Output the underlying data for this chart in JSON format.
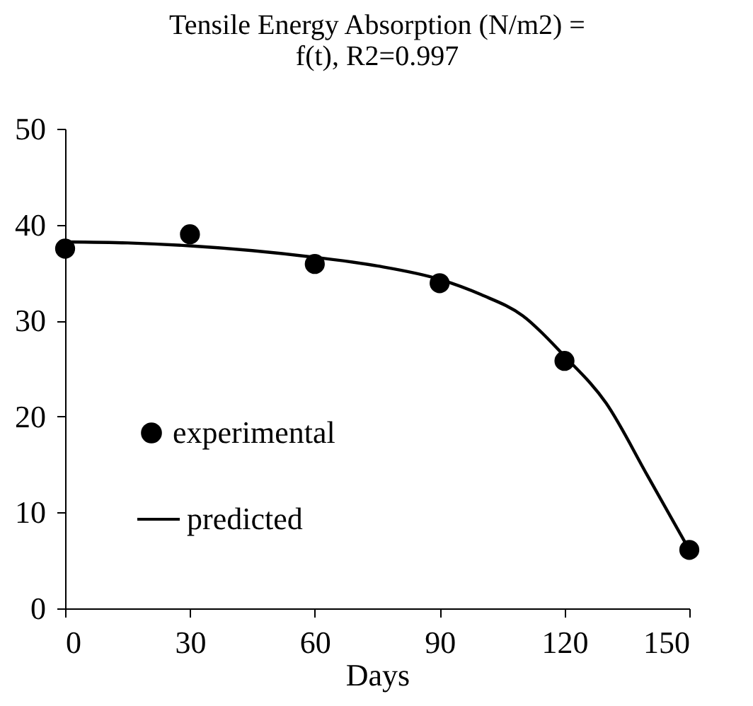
{
  "chart_data": {
    "type": "scatter",
    "title": [
      "Tensile Energy Absorption (N/m2) =",
      "f(t), R2=0.997"
    ],
    "xlabel": "Days",
    "xlim": [
      0,
      150
    ],
    "xticks": [
      0,
      30,
      60,
      90,
      120,
      150
    ],
    "ylim": [
      0,
      50
    ],
    "yticks": [
      0,
      10,
      20,
      30,
      40,
      50
    ],
    "grid": false,
    "legend": "bottom left",
    "series": [
      {
        "name": "experimental",
        "marker": "circle",
        "color": "#000000",
        "x": [
          0,
          30,
          60,
          90,
          120,
          150
        ],
        "values": [
          37.5,
          39.0,
          35.9,
          33.9,
          25.8,
          6.1
        ]
      },
      {
        "name": "predicted",
        "type": "line",
        "marker": "none",
        "line_style": "solid",
        "color": "#000000",
        "x": [
          0,
          15,
          30,
          45,
          60,
          75,
          90,
          100,
          110,
          120,
          130,
          140,
          150
        ],
        "values": [
          38.2,
          38.1,
          37.8,
          37.3,
          36.6,
          35.7,
          34.3,
          32.7,
          30.5,
          26.3,
          21.4,
          13.8,
          6.1
        ]
      }
    ]
  }
}
